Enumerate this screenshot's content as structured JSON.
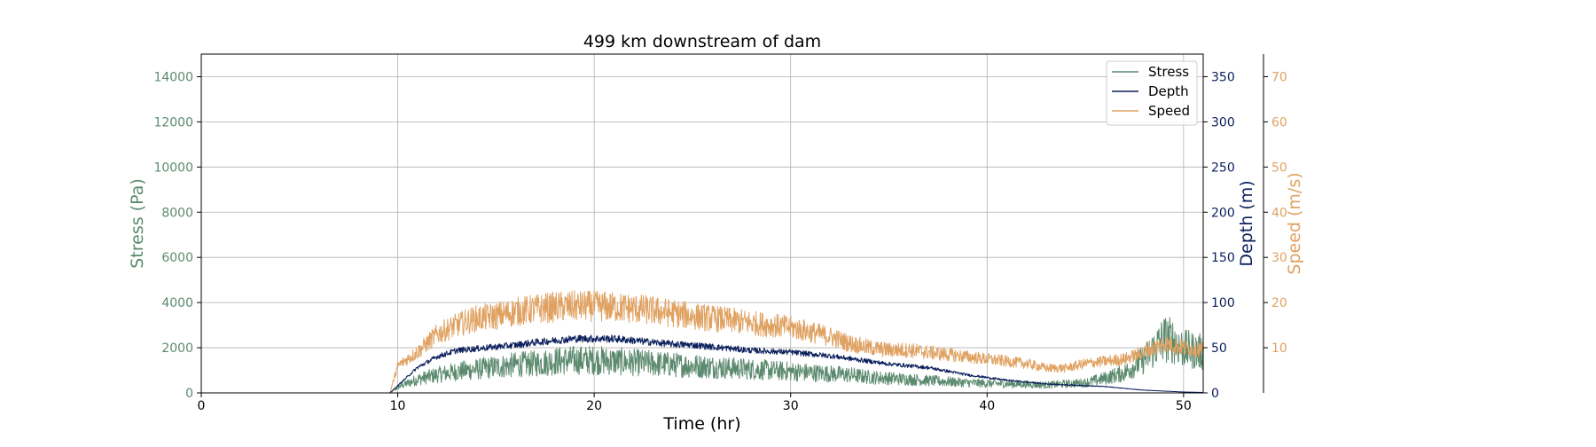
{
  "chart_data": {
    "type": "line",
    "title": "499 km downstream of dam",
    "xlabel": "Time (hr)",
    "xlim": [
      0,
      51
    ],
    "grid": true,
    "legend": {
      "placement": "top-right",
      "entries": [
        "Stress",
        "Depth",
        "Speed"
      ]
    },
    "x_ticks": [
      0,
      10,
      20,
      30,
      40,
      50
    ],
    "axes": {
      "stress": {
        "label": "Stress (Pa)",
        "ylim": [
          0,
          15000
        ],
        "ticks": [
          0,
          2000,
          4000,
          6000,
          8000,
          10000,
          12000,
          14000
        ],
        "color": "#5b8a6e"
      },
      "depth": {
        "label": "Depth (m)",
        "ylim": [
          0,
          375
        ],
        "ticks": [
          0,
          50,
          100,
          150,
          200,
          250,
          300,
          350
        ],
        "color": "#0b1f5c"
      },
      "speed": {
        "label": "Speed (m/s)",
        "ylim": [
          0,
          75
        ],
        "ticks": [
          10,
          20,
          30,
          40,
          50,
          60,
          70
        ],
        "color": "#e0a262"
      }
    },
    "series": [
      {
        "name": "Stress",
        "axis": "stress",
        "color": "#5b8a6e",
        "x": [
          0,
          9.6,
          10,
          11,
          12,
          13,
          14,
          15,
          16,
          17,
          18,
          19,
          20,
          21,
          22,
          23,
          24,
          25,
          26,
          27,
          28,
          29,
          30,
          31,
          32,
          33,
          34,
          35,
          36,
          37,
          38,
          39,
          40,
          41,
          42,
          43,
          44,
          45,
          46,
          47,
          48,
          49,
          49.5,
          50,
          51
        ],
        "y": [
          0,
          0,
          250,
          600,
          800,
          950,
          1050,
          1150,
          1250,
          1300,
          1400,
          1450,
          1450,
          1400,
          1350,
          1300,
          1250,
          1200,
          1150,
          1100,
          1050,
          1000,
          950,
          900,
          850,
          800,
          700,
          650,
          600,
          550,
          500,
          450,
          420,
          400,
          380,
          350,
          400,
          450,
          650,
          900,
          1500,
          2400,
          2300,
          1950,
          1800
        ]
      },
      {
        "name": "Depth",
        "axis": "depth",
        "color": "#0b1f5c",
        "x": [
          0,
          9.6,
          10,
          11,
          12,
          13,
          14,
          15,
          16,
          17,
          18,
          19,
          20,
          21,
          22,
          23,
          24,
          25,
          26,
          27,
          28,
          29,
          30,
          31,
          32,
          33,
          34,
          35,
          36,
          37,
          38,
          39,
          40,
          41,
          42,
          43,
          44,
          45,
          46,
          47,
          48,
          49,
          50,
          51
        ],
        "y": [
          0,
          0,
          8,
          28,
          40,
          47,
          49,
          51,
          53,
          56,
          58,
          60,
          60,
          60,
          58,
          56,
          54,
          53,
          51,
          49,
          47,
          46,
          45,
          43,
          41,
          38,
          35,
          32,
          30,
          28,
          24,
          20,
          17,
          14,
          12,
          10,
          9,
          8,
          7,
          5,
          3,
          2,
          1,
          0.5
        ]
      },
      {
        "name": "Speed",
        "axis": "speed",
        "color": "#e0a262",
        "x": [
          0,
          9.6,
          10,
          11,
          12,
          13,
          14,
          15,
          16,
          17,
          18,
          19,
          20,
          21,
          22,
          23,
          24,
          25,
          26,
          27,
          28,
          29,
          30,
          31,
          32,
          33,
          34,
          35,
          36,
          37,
          38,
          39,
          40,
          41,
          42,
          43,
          44,
          45,
          46,
          47,
          48,
          49,
          50,
          51
        ],
        "y": [
          0,
          0,
          6,
          9,
          13,
          15,
          16.5,
          17,
          18,
          18.5,
          19,
          19.2,
          19.2,
          19,
          18.7,
          18.2,
          17.6,
          17,
          16.5,
          16,
          15.5,
          15,
          14.5,
          13.5,
          12.5,
          11,
          10,
          9.5,
          9.5,
          9,
          8.5,
          8,
          7.5,
          7,
          6.5,
          5.5,
          5.5,
          6.5,
          7,
          7.5,
          9,
          11,
          10,
          9.5
        ]
      }
    ]
  }
}
